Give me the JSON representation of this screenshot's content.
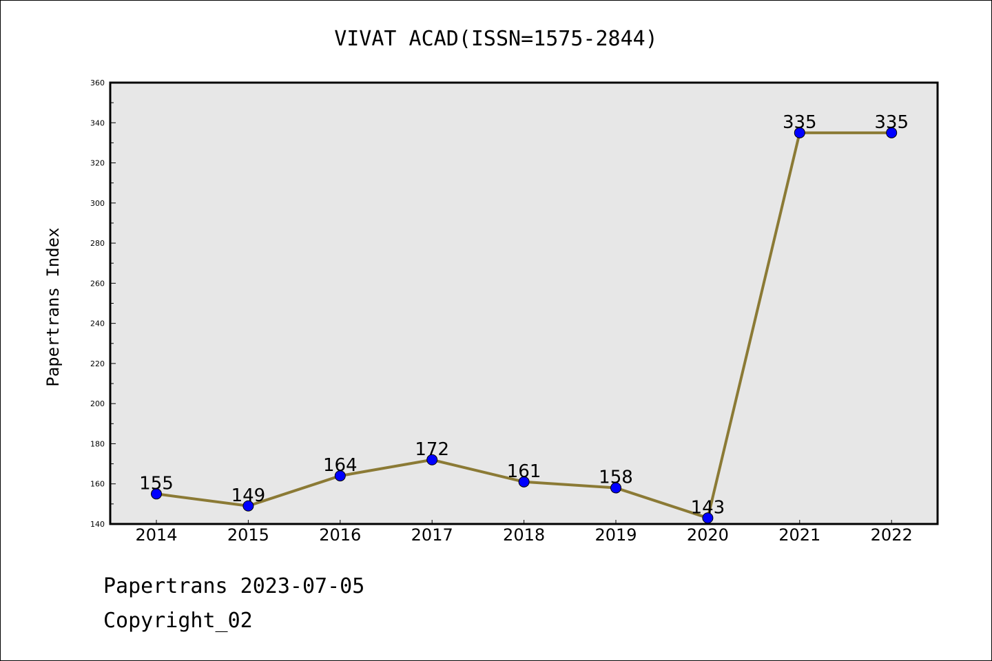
{
  "chart_data": {
    "type": "line",
    "title": "VIVAT ACAD(ISSN=1575-2844)",
    "xlabel": "",
    "ylabel": "Papertrans Index",
    "categories": [
      "2014",
      "2015",
      "2016",
      "2017",
      "2018",
      "2019",
      "2020",
      "2021",
      "2022"
    ],
    "series": [
      {
        "values": [
          155,
          149,
          164,
          172,
          161,
          158,
          143,
          335,
          335
        ]
      }
    ],
    "ylim": [
      140,
      360
    ],
    "yticks": [
      140,
      160,
      180,
      200,
      220,
      240,
      260,
      280,
      300,
      320,
      340,
      360
    ],
    "grid": false,
    "colors": {
      "line": "#8b7a35",
      "marker": "#0000ff",
      "plot_bg": "#e7e7e7"
    }
  },
  "footer": {
    "line1": "Papertrans 2023-07-05",
    "line2": "Copyright_02"
  }
}
